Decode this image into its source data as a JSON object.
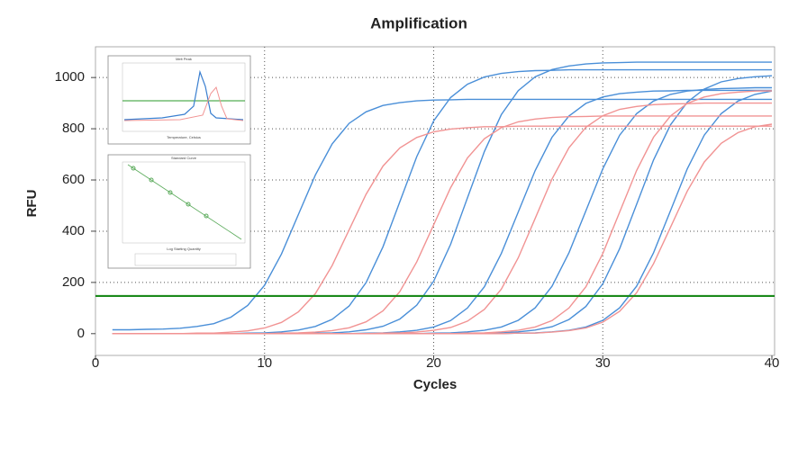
{
  "chart_data": {
    "type": "line",
    "title": "Amplification",
    "x_label": "Cycles",
    "y_label": "RFU",
    "inset_titles": [
      "Melt Peak",
      "Standard Curve"
    ],
    "inset_x_labels": [
      "Temperature, Celsius",
      "Log Starting Quantity"
    ],
    "xlim": [
      0,
      40
    ],
    "ylim": [
      -85,
      1120
    ],
    "xticks": [
      0,
      10,
      20,
      30,
      40
    ],
    "yticks": [
      0,
      200,
      400,
      600,
      800,
      1000
    ],
    "grid": true,
    "threshold": 147,
    "threshold_color": "#1a8a1a",
    "x": [
      1,
      2,
      3,
      4,
      5,
      6,
      7,
      8,
      9,
      10,
      11,
      12,
      13,
      14,
      15,
      16,
      17,
      18,
      19,
      20,
      21,
      22,
      23,
      24,
      25,
      26,
      27,
      28,
      29,
      30,
      31,
      32,
      33,
      34,
      35,
      36,
      37,
      38,
      39,
      40
    ],
    "series": [
      {
        "color": "#4a8fd8",
        "values": [
          15,
          15,
          17,
          18,
          21,
          28,
          39,
          64,
          110,
          189,
          311,
          465,
          619,
          741,
          821,
          866,
          891,
          902,
          909,
          912,
          913,
          915,
          915,
          915,
          915,
          915,
          915,
          915,
          915,
          915,
          915,
          915,
          915,
          915,
          915,
          915,
          915,
          915,
          915,
          915
        ]
      },
      {
        "color": "#4a8fd8",
        "values": [
          0,
          0,
          0,
          0,
          0,
          0,
          0,
          0,
          2,
          3,
          7,
          14,
          28,
          56,
          108,
          199,
          339,
          515,
          691,
          831,
          922,
          974,
          1002,
          1016,
          1023,
          1027,
          1028,
          1030,
          1030,
          1030,
          1030,
          1030,
          1030,
          1030,
          1030,
          1030,
          1030,
          1030,
          1030,
          1030
        ]
      },
      {
        "color": "#4a8fd8",
        "values": [
          0,
          0,
          0,
          0,
          0,
          0,
          0,
          0,
          0,
          0,
          0,
          0,
          2,
          3,
          7,
          15,
          29,
          57,
          111,
          205,
          349,
          530,
          711,
          855,
          949,
          1003,
          1031,
          1045,
          1053,
          1057,
          1058,
          1060,
          1060,
          1060,
          1060,
          1060,
          1060,
          1060,
          1060,
          1060
        ]
      },
      {
        "color": "#4a8fd8",
        "values": [
          0,
          0,
          0,
          0,
          0,
          0,
          0,
          0,
          0,
          0,
          0,
          0,
          0,
          0,
          0,
          2,
          3,
          7,
          13,
          26,
          51,
          100,
          183,
          313,
          475,
          637,
          767,
          850,
          899,
          924,
          937,
          943,
          947,
          948,
          950,
          950,
          950,
          950,
          950,
          950
        ]
      },
      {
        "color": "#4a8fd8",
        "values": [
          0,
          0,
          0,
          0,
          0,
          0,
          0,
          0,
          0,
          0,
          0,
          0,
          0,
          0,
          0,
          0,
          0,
          0,
          0,
          2,
          3,
          7,
          13,
          26,
          52,
          101,
          185,
          316,
          480,
          644,
          775,
          859,
          908,
          934,
          947,
          953,
          957,
          958,
          960,
          960
        ]
      },
      {
        "color": "#4a8fd8",
        "values": [
          0,
          0,
          0,
          0,
          0,
          0,
          0,
          0,
          0,
          0,
          0,
          0,
          0,
          0,
          0,
          0,
          0,
          0,
          0,
          0,
          0,
          0,
          2,
          3,
          7,
          14,
          27,
          55,
          106,
          195,
          332,
          505,
          678,
          815,
          904,
          955,
          983,
          996,
          1003,
          1007
        ]
      },
      {
        "color": "#4a8fd8",
        "values": [
          0,
          0,
          0,
          0,
          0,
          0,
          0,
          0,
          0,
          0,
          0,
          0,
          0,
          0,
          0,
          0,
          0,
          0,
          0,
          0,
          0,
          0,
          0,
          0,
          2,
          3,
          7,
          13,
          26,
          52,
          101,
          185,
          316,
          480,
          644,
          775,
          859,
          908,
          934,
          947
        ]
      },
      {
        "color": "#f19393",
        "values": [
          0,
          0,
          0,
          0,
          0,
          2,
          2,
          6,
          11,
          22,
          44,
          85,
          156,
          266,
          405,
          544,
          654,
          725,
          766,
          788,
          799,
          804,
          808,
          808,
          810,
          810,
          810,
          810,
          810,
          810,
          810,
          810,
          810,
          810,
          810,
          810,
          810,
          810,
          810,
          810
        ]
      },
      {
        "color": "#f19393",
        "values": [
          0,
          0,
          0,
          0,
          0,
          0,
          0,
          0,
          0,
          0,
          2,
          3,
          6,
          12,
          23,
          46,
          89,
          164,
          280,
          425,
          570,
          686,
          761,
          804,
          827,
          838,
          844,
          847,
          848,
          850,
          850,
          850,
          850,
          850,
          850,
          850,
          850,
          850,
          850,
          850
        ]
      },
      {
        "color": "#f19393",
        "values": [
          0,
          0,
          0,
          0,
          0,
          0,
          0,
          0,
          0,
          0,
          0,
          0,
          0,
          0,
          0,
          0,
          2,
          3,
          6,
          13,
          24,
          49,
          95,
          174,
          296,
          450,
          604,
          726,
          806,
          851,
          876,
          887,
          894,
          897,
          898,
          900,
          900,
          900,
          900,
          900
        ]
      },
      {
        "color": "#f19393",
        "values": [
          0,
          0,
          0,
          0,
          0,
          0,
          0,
          0,
          0,
          0,
          0,
          0,
          0,
          0,
          0,
          0,
          0,
          0,
          0,
          0,
          0,
          2,
          3,
          7,
          13,
          26,
          51,
          100,
          183,
          313,
          475,
          637,
          767,
          850,
          899,
          924,
          937,
          943,
          947,
          948
        ]
      },
      {
        "color": "#f19393",
        "values": [
          0,
          0,
          0,
          0,
          0,
          0,
          0,
          0,
          0,
          0,
          0,
          0,
          0,
          0,
          0,
          0,
          0,
          0,
          0,
          0,
          0,
          0,
          0,
          0,
          2,
          2,
          6,
          12,
          22,
          45,
          87,
          160,
          273,
          415,
          557,
          670,
          743,
          785,
          808,
          818
        ]
      }
    ]
  }
}
